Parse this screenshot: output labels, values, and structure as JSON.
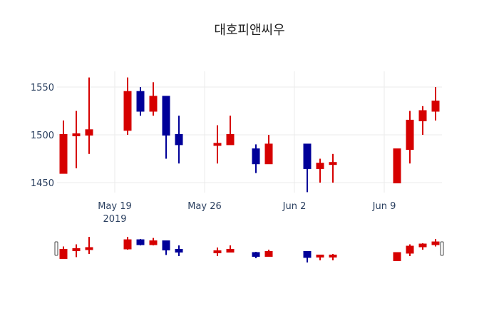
{
  "chart_data": {
    "type": "candlestick",
    "title": "대호피앤씨우",
    "xlabel": "",
    "ylabel": "",
    "ylim": [
      1433,
      1567
    ],
    "grid": true,
    "legend": "none",
    "increasing_color": "#d60000",
    "decreasing_color": "#000099",
    "x_ticks": [
      {
        "label": "May 19",
        "sublabel": "2019",
        "date": "2019-05-19"
      },
      {
        "label": "May 26",
        "sublabel": "",
        "date": "2019-05-26"
      },
      {
        "label": "Jun 2",
        "sublabel": "",
        "date": "2019-06-02"
      },
      {
        "label": "Jun 9",
        "sublabel": "",
        "date": "2019-06-09"
      }
    ],
    "y_ticks": [
      1450,
      1500,
      1550
    ],
    "x_range": [
      "2019-05-14T12:00",
      "2019-06-13T12:00"
    ],
    "candles": [
      {
        "date": "2019-05-15",
        "open": 1460,
        "high": 1515,
        "low": 1460,
        "close": 1500
      },
      {
        "date": "2019-05-16",
        "open": 1500,
        "high": 1525,
        "low": 1465,
        "close": 1500
      },
      {
        "date": "2019-05-17",
        "open": 1500,
        "high": 1560,
        "low": 1480,
        "close": 1505
      },
      {
        "date": "2019-05-20",
        "open": 1505,
        "high": 1560,
        "low": 1500,
        "close": 1545
      },
      {
        "date": "2019-05-21",
        "open": 1545,
        "high": 1550,
        "low": 1520,
        "close": 1525
      },
      {
        "date": "2019-05-22",
        "open": 1525,
        "high": 1555,
        "low": 1520,
        "close": 1540
      },
      {
        "date": "2019-05-23",
        "open": 1540,
        "high": 1540,
        "low": 1475,
        "close": 1500
      },
      {
        "date": "2019-05-24",
        "open": 1500,
        "high": 1520,
        "low": 1470,
        "close": 1490
      },
      {
        "date": "2019-05-27",
        "open": 1490,
        "high": 1510,
        "low": 1470,
        "close": 1490
      },
      {
        "date": "2019-05-28",
        "open": 1490,
        "high": 1520,
        "low": 1490,
        "close": 1500
      },
      {
        "date": "2019-05-30",
        "open": 1485,
        "high": 1490,
        "low": 1460,
        "close": 1470
      },
      {
        "date": "2019-05-31",
        "open": 1470,
        "high": 1500,
        "low": 1470,
        "close": 1490
      },
      {
        "date": "2019-06-03",
        "open": 1490,
        "high": 1490,
        "low": 1440,
        "close": 1465
      },
      {
        "date": "2019-06-04",
        "open": 1465,
        "high": 1475,
        "low": 1450,
        "close": 1470
      },
      {
        "date": "2019-06-05",
        "open": 1470,
        "high": 1480,
        "low": 1450,
        "close": 1470
      },
      {
        "date": "2019-06-10",
        "open": 1450,
        "high": 1485,
        "low": 1450,
        "close": 1485
      },
      {
        "date": "2019-06-11",
        "open": 1485,
        "high": 1525,
        "low": 1470,
        "close": 1515
      },
      {
        "date": "2019-06-12",
        "open": 1515,
        "high": 1530,
        "low": 1500,
        "close": 1525
      },
      {
        "date": "2019-06-13",
        "open": 1525,
        "high": 1550,
        "low": 1515,
        "close": 1535
      }
    ],
    "rangeslider": {
      "visible": true
    }
  }
}
